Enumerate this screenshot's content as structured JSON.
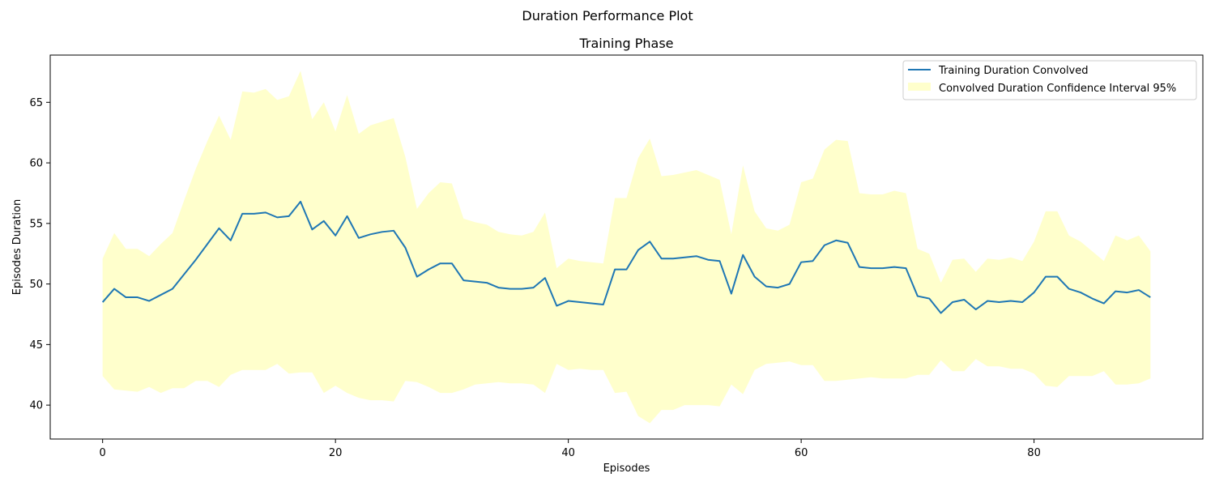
{
  "figure": {
    "suptitle": "Duration Performance Plot"
  },
  "chart_data": {
    "type": "line",
    "title": "Training Phase",
    "xlabel": "Episodes",
    "ylabel": "Episodes Duration",
    "xlim": [
      -4.5,
      94.5
    ],
    "ylim": [
      37.2,
      68.9
    ],
    "xticks": [
      0,
      20,
      40,
      60,
      80
    ],
    "yticks": [
      40,
      45,
      50,
      55,
      60,
      65
    ],
    "grid": false,
    "legend_position": "top-right",
    "colors": {
      "line": "#1f77b4",
      "band": "#ffffcc"
    },
    "series": [
      {
        "name": "Training Duration Convolved",
        "kind": "line",
        "x": [
          0,
          1,
          2,
          3,
          4,
          5,
          6,
          7,
          8,
          9,
          10,
          11,
          12,
          13,
          14,
          15,
          16,
          17,
          18,
          19,
          20,
          21,
          22,
          23,
          24,
          25,
          26,
          27,
          28,
          29,
          30,
          31,
          32,
          33,
          34,
          35,
          36,
          37,
          38,
          39,
          40,
          41,
          42,
          43,
          44,
          45,
          46,
          47,
          48,
          49,
          50,
          51,
          52,
          53,
          54,
          55,
          56,
          57,
          58,
          59,
          60,
          61,
          62,
          63,
          64,
          65,
          66,
          67,
          68,
          69,
          70,
          71,
          72,
          73,
          74,
          75,
          76,
          77,
          78,
          79,
          80,
          81,
          82,
          83,
          84,
          85,
          86,
          87,
          88,
          89,
          90
        ],
        "values": [
          48.5,
          49.6,
          48.9,
          48.9,
          48.6,
          49.1,
          49.6,
          50.8,
          52.0,
          53.3,
          54.6,
          53.6,
          55.8,
          55.8,
          55.9,
          55.5,
          55.6,
          56.8,
          54.5,
          55.2,
          54.0,
          55.6,
          53.8,
          54.1,
          54.3,
          54.4,
          53.0,
          50.6,
          51.2,
          51.7,
          51.7,
          50.3,
          50.2,
          50.1,
          49.7,
          49.6,
          49.6,
          49.7,
          50.5,
          48.2,
          48.6,
          48.5,
          48.4,
          48.3,
          51.2,
          51.2,
          52.8,
          53.5,
          52.1,
          52.1,
          52.2,
          52.3,
          52.0,
          51.9,
          49.2,
          52.4,
          50.6,
          49.8,
          49.7,
          50.0,
          51.8,
          51.9,
          53.2,
          53.6,
          53.4,
          51.4,
          51.3,
          51.3,
          51.4,
          51.3,
          49.0,
          48.8,
          47.6,
          48.5,
          48.7,
          47.9,
          48.6,
          48.5,
          48.6,
          48.5,
          49.3,
          50.6,
          50.6,
          49.6,
          49.3,
          48.8,
          48.4,
          49.4,
          49.3,
          49.5,
          48.9
        ]
      },
      {
        "name": "Convolved Duration Confidence Interval 95%",
        "kind": "band",
        "x": [
          0,
          1,
          2,
          3,
          4,
          5,
          6,
          7,
          8,
          9,
          10,
          11,
          12,
          13,
          14,
          15,
          16,
          17,
          18,
          19,
          20,
          21,
          22,
          23,
          24,
          25,
          26,
          27,
          28,
          29,
          30,
          31,
          32,
          33,
          34,
          35,
          36,
          37,
          38,
          39,
          40,
          41,
          42,
          43,
          44,
          45,
          46,
          47,
          48,
          49,
          50,
          51,
          52,
          53,
          54,
          55,
          56,
          57,
          58,
          59,
          60,
          61,
          62,
          63,
          64,
          65,
          66,
          67,
          68,
          69,
          70,
          71,
          72,
          73,
          74,
          75,
          76,
          77,
          78,
          79,
          80,
          81,
          82,
          83,
          84,
          85,
          86,
          87,
          88,
          89,
          90
        ],
        "lower": [
          42.4,
          41.3,
          41.2,
          41.1,
          41.5,
          41.0,
          41.4,
          41.4,
          42.0,
          42.0,
          41.5,
          42.5,
          42.9,
          42.9,
          42.9,
          43.4,
          42.6,
          42.7,
          42.7,
          41.0,
          41.6,
          41.0,
          40.6,
          40.4,
          40.4,
          40.3,
          42.0,
          41.9,
          41.5,
          41.0,
          41.0,
          41.3,
          41.7,
          41.8,
          41.9,
          41.8,
          41.8,
          41.7,
          41.0,
          43.4,
          42.9,
          43.0,
          42.9,
          42.9,
          41.0,
          41.1,
          39.1,
          38.5,
          39.6,
          39.6,
          40.0,
          40.0,
          40.0,
          39.9,
          41.7,
          40.9,
          42.9,
          43.4,
          43.5,
          43.6,
          43.3,
          43.3,
          42.0,
          42.0,
          42.1,
          42.2,
          42.3,
          42.2,
          42.2,
          42.2,
          42.5,
          42.5,
          43.7,
          42.8,
          42.8,
          43.8,
          43.2,
          43.2,
          43.0,
          43.0,
          42.6,
          41.6,
          41.5,
          42.4,
          42.4,
          42.4,
          42.8,
          41.7,
          41.7,
          41.8,
          42.2
        ],
        "upper": [
          52.1,
          54.2,
          52.9,
          52.9,
          52.3,
          53.3,
          54.2,
          56.9,
          59.5,
          61.8,
          63.9,
          61.9,
          65.9,
          65.8,
          66.1,
          65.2,
          65.5,
          67.6,
          63.6,
          65.0,
          62.6,
          65.6,
          62.4,
          63.1,
          63.4,
          63.7,
          60.5,
          56.2,
          57.5,
          58.4,
          58.3,
          55.4,
          55.1,
          54.9,
          54.3,
          54.1,
          54.0,
          54.3,
          55.9,
          51.3,
          52.1,
          51.9,
          51.8,
          51.7,
          57.1,
          57.1,
          60.4,
          62.0,
          58.9,
          59.0,
          59.2,
          59.4,
          59.0,
          58.6,
          54.1,
          59.8,
          56.0,
          54.6,
          54.4,
          54.9,
          58.4,
          58.7,
          61.1,
          61.9,
          61.8,
          57.5,
          57.4,
          57.4,
          57.7,
          57.5,
          52.9,
          52.5,
          50.1,
          52.0,
          52.1,
          51.0,
          52.1,
          52.0,
          52.2,
          51.9,
          53.5,
          56.0,
          56.0,
          54.0,
          53.5,
          52.7,
          51.9,
          54.0,
          53.6,
          54.0,
          52.7
        ]
      }
    ]
  }
}
